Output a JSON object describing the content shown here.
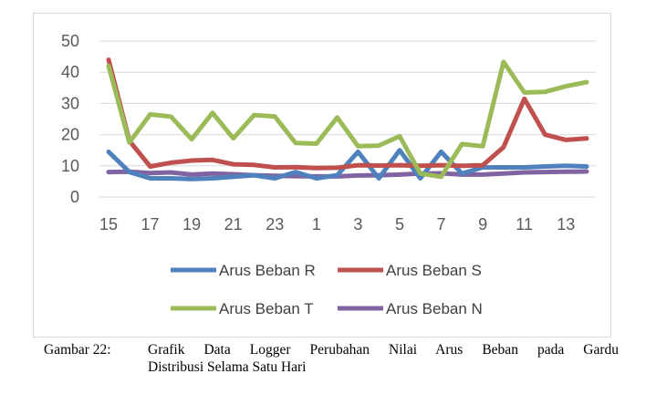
{
  "chart_data": {
    "type": "line",
    "categories": [
      "15",
      "16",
      "17",
      "18",
      "19",
      "20",
      "21",
      "22",
      "23",
      "24",
      "1",
      "2",
      "3",
      "4",
      "5",
      "6",
      "7",
      "8",
      "9",
      "10",
      "11",
      "12",
      "13",
      "14"
    ],
    "x_tick_labels": [
      "15",
      "17",
      "19",
      "21",
      "23",
      "1",
      "3",
      "5",
      "7",
      "9",
      "11",
      "13"
    ],
    "y_tick_labels": [
      "0",
      "10",
      "20",
      "30",
      "40",
      "50"
    ],
    "ylim": [
      0,
      50
    ],
    "y_ticks": [
      0,
      10,
      20,
      30,
      40,
      50
    ],
    "grid": true,
    "legend_position": "bottom",
    "series": [
      {
        "name": "Arus Beban R",
        "color": "#4f81bd",
        "values": [
          14.5,
          8,
          6,
          6,
          5.8,
          6,
          6.5,
          7,
          6,
          8,
          6,
          7,
          14.5,
          6,
          15,
          6,
          14.5,
          7.5,
          9.5,
          9.5,
          9.5,
          9.8,
          10,
          9.8
        ]
      },
      {
        "name": "Arus Beban S",
        "color": "#c0504d",
        "values": [
          44,
          18,
          9.8,
          11,
          11.7,
          11.9,
          10.5,
          10.3,
          9.5,
          9.6,
          9.3,
          9.4,
          10.2,
          10.1,
          10.2,
          10,
          10.2,
          10,
          10.2,
          16,
          31.5,
          20,
          18.3,
          18.8
        ]
      },
      {
        "name": "Arus Beban T",
        "color": "#9bbb59",
        "values": [
          42,
          17.5,
          26.5,
          25.8,
          18.5,
          27,
          18.8,
          26.3,
          25.8,
          17.3,
          17.1,
          25.5,
          16.3,
          16.5,
          19.5,
          7.5,
          6.5,
          17,
          16.3,
          43.3,
          33.5,
          33.7,
          35.5,
          36.8
        ]
      },
      {
        "name": "Arus Beban N",
        "color": "#8064a2",
        "values": [
          8,
          8.1,
          7.7,
          7.9,
          7.2,
          7.5,
          7.3,
          7,
          6.8,
          6.7,
          6.6,
          6.6,
          6.9,
          7,
          7.2,
          7.5,
          7.6,
          7.2,
          7.2,
          7.5,
          7.9,
          8,
          8.1,
          8.2
        ]
      }
    ]
  },
  "caption": {
    "prefix": "Gambar 22:",
    "line1": "Grafik Data Logger Perubahan Nilai Arus Beban pada Gardu",
    "line2": "Distribusi Selama Satu Hari"
  }
}
